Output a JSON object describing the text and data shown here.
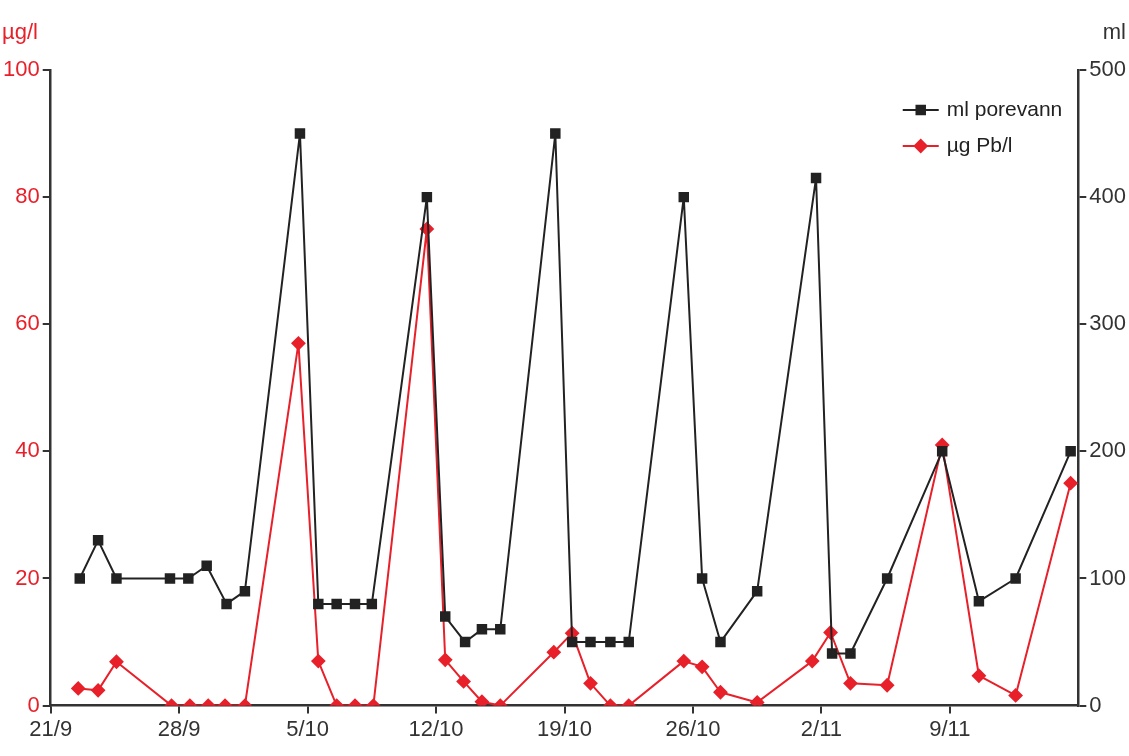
{
  "chart_data": {
    "type": "line",
    "ylabel": "µg/l",
    "y2label": "ml",
    "xlim": [
      "--09-21",
      "--11-16"
    ],
    "xticks": [
      {
        "value": "--09-21",
        "label": "21/9"
      },
      {
        "value": "--09-28",
        "label": "28/9"
      },
      {
        "value": "--10-05",
        "label": "5/10"
      },
      {
        "value": "--10-12",
        "label": "12/10"
      },
      {
        "value": "--10-19",
        "label": "19/10"
      },
      {
        "value": "--10-26",
        "label": "26/10"
      },
      {
        "value": "--11-02",
        "label": "2/11"
      },
      {
        "value": "--11-09",
        "label": "9/11"
      }
    ],
    "ylim": [
      0,
      100
    ],
    "yticks": [
      0,
      20,
      40,
      60,
      80,
      100
    ],
    "y2lim": [
      0,
      500
    ],
    "y2ticks": [
      0,
      100,
      200,
      300,
      400,
      500
    ],
    "grid": false,
    "legend": "top right",
    "line_style": "solid",
    "series": [
      {
        "name": "ml porevann",
        "color": "#222222",
        "axis": "y2",
        "marker": "square",
        "x": [
          "--09-22T14:00",
          "--09-23T14:00",
          "--09-24T14:00",
          "--09-27T12:00",
          "--09-28T12:00",
          "--09-29T12:00",
          "--09-30T14:00",
          "--10-01T14:00",
          "--10-04T14:00",
          "--10-05T14:00",
          "--10-06T14:00",
          "--10-07T14:00",
          "--10-08T12:00",
          "--10-11T12:00",
          "--10-12T12:00",
          "--10-13T14:00",
          "--10-14T12:00",
          "--10-15T12:00",
          "--10-18T12:00",
          "--10-19T10:00",
          "--10-20T10:00",
          "--10-21T12:00",
          "--10-22T12:00",
          "--10-25T12:00",
          "--10-26T12:00",
          "--10-27T12:00",
          "--10-29T12:00",
          "--11-01T17:00",
          "--11-02T14:00",
          "--11-03T14:00",
          "--11-05T14:00",
          "--11-08T14:00",
          "--11-10T14:00",
          "--11-12T14:00",
          "--11-15T14:00"
        ],
        "values": [
          100,
          130,
          100,
          100,
          100,
          110,
          80,
          90,
          450,
          80,
          80,
          80,
          80,
          400,
          70,
          50,
          60,
          60,
          450,
          50,
          50,
          50,
          50,
          400,
          100,
          50,
          90,
          415,
          41,
          41,
          100,
          200,
          82,
          100,
          200
        ]
      },
      {
        "name": "µg Pb/l",
        "color": "#e8202a",
        "marker": "diamond",
        "x": [
          "--09-22T12:00",
          "--09-23T14:00",
          "--09-24T14:00",
          "--09-27T14:00",
          "--09-28T14:00",
          "--09-29T14:00",
          "--09-30T12:00",
          "--10-01T14:00",
          "--10-04T12:00",
          "--10-05T14:00",
          "--10-06T14:00",
          "--10-07T14:00",
          "--10-08T14:00",
          "--10-11T12:00",
          "--10-12T12:00",
          "--10-13T12:00",
          "--10-14T12:00",
          "--10-15T12:00",
          "--10-18T10:00",
          "--10-19T10:00",
          "--10-20T10:00",
          "--10-21T12:00",
          "--10-22T12:00",
          "--10-25T12:00",
          "--10-26T12:00",
          "--10-27T12:00",
          "--10-29T12:00",
          "--11-01T12:00",
          "--11-02T12:00",
          "--11-03T14:00",
          "--11-05T14:00",
          "--11-08T14:00",
          "--11-10T14:00",
          "--11-12T14:00",
          "--11-15T14:00"
        ],
        "values": [
          2.7,
          2.4,
          6.9,
          0,
          0,
          0,
          0,
          0,
          57,
          7,
          0,
          0,
          0,
          75,
          7.2,
          3.8,
          0.6,
          0,
          8.4,
          11.4,
          3.5,
          0,
          0,
          7,
          6.1,
          2.1,
          0.5,
          7,
          11.5,
          3.5,
          3.2,
          41,
          4.7,
          1.6,
          35
        ]
      }
    ]
  }
}
